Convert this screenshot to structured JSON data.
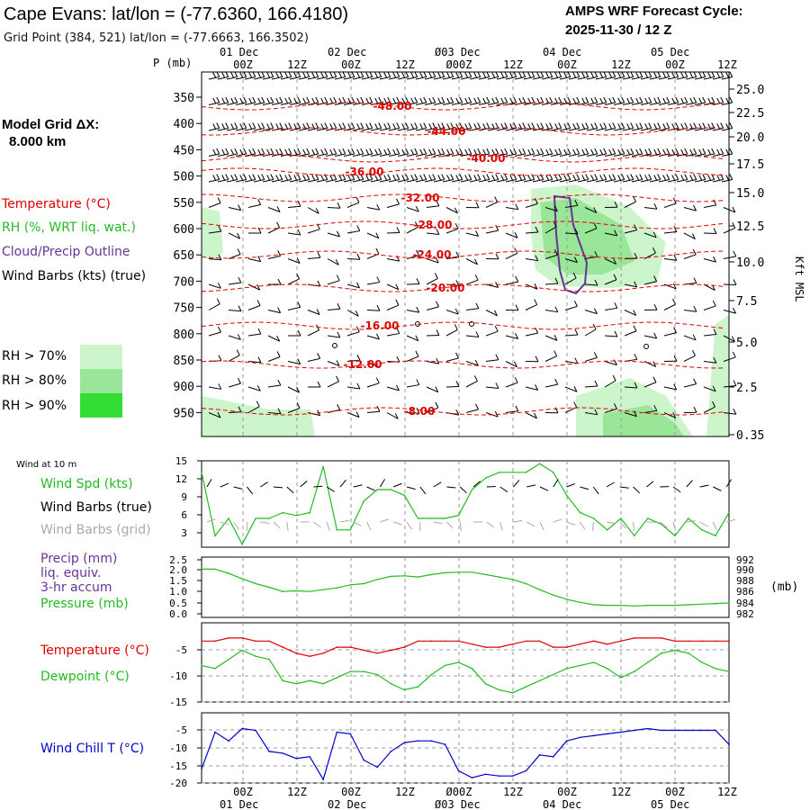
{
  "header": {
    "title": "Cape Evans:  lat/lon = (-77.6360, 166.4180)",
    "subtitle": "Grid Point (384, 521) lat/lon = (-77.6663, 166.3502)",
    "cycle_line1": "AMPS WRF Forecast Cycle:",
    "cycle_line2": "2025-11-30 / 12  Z"
  },
  "left_panel": {
    "grid_label": "Model Grid ΔX:",
    "grid_value": "8.000 km",
    "legend_temperature": "Temperature (°C)",
    "legend_rh": "RH (%, WRT liq. wat.)",
    "legend_cloud": "Cloud/Precip Outline",
    "legend_wind": "Wind Barbs (kts) (true)",
    "rh_levels": [
      "RH > 70%",
      "RH > 80%",
      "RH > 90%"
    ],
    "rh_colors": [
      "#ccf5cc",
      "#99e699",
      "#33dd33"
    ]
  },
  "time_axis": {
    "top_dates": [
      "01 Dec",
      "02 Dec",
      "Ø03 Dec",
      "04 Dec",
      "05 Dec"
    ],
    "bottom_dates": [
      "01 Dec",
      "02 Dec",
      "Ø03 Dec",
      "04 Dec",
      "05 Dec"
    ],
    "hour_labels": [
      "00Z",
      "12Z",
      "00Z",
      "12Z",
      "Ø00Z",
      "12Z",
      "00Z",
      "12Z",
      "00Z",
      "12Z"
    ]
  },
  "colors": {
    "temperature": "#e00000",
    "rh_green": "#22bb22",
    "cloud": "#663399",
    "pressure": "#22bb22",
    "windchill": "#0000cc",
    "grid_barbs": "#aaaaaa"
  },
  "chart_data": [
    {
      "id": "cross_section",
      "type": "contour",
      "ylabel": "P (mb)",
      "y_ticks": [
        "350",
        "400",
        "450",
        "500",
        "550",
        "600",
        "650",
        "700",
        "750",
        "800",
        "850",
        "900",
        "950"
      ],
      "right_ticks": [
        "25.0",
        "22.5",
        "20.0",
        "17.5",
        "15.0",
        "12.5",
        "10.0",
        "7.5",
        "5.0",
        "2.5",
        "0.35"
      ],
      "right_label": "Kft MSL",
      "temperature_contours": [
        {
          "label": "-48.00",
          "value": -48
        },
        {
          "label": "-44.00",
          "value": -44
        },
        {
          "label": "-40.00",
          "value": -40
        },
        {
          "label": "-36.00",
          "value": -36
        },
        {
          "label": "-32.00",
          "value": -32
        },
        {
          "label": "-28.00",
          "value": -28
        },
        {
          "label": "-24.00",
          "value": -24
        },
        {
          "label": "-20.00",
          "value": -20
        },
        {
          "label": "-16.00",
          "value": -16
        },
        {
          "label": "-12.00",
          "value": -12
        },
        {
          "label": "-8.00",
          "value": -8
        }
      ]
    },
    {
      "id": "wind10m",
      "type": "line",
      "title": "Wind at 10 m",
      "label_speed": "Wind Spd (kts)",
      "label_barbs_true": "Wind Barbs (true)",
      "label_barbs_grid": "Wind Barbs (grid)",
      "y_ticks": [
        "15",
        "12",
        "9",
        "6",
        "3"
      ],
      "ylim": [
        0,
        15
      ],
      "hours": [
        0,
        3,
        6,
        9,
        12,
        15,
        18,
        21,
        24,
        27,
        30,
        33,
        36,
        39,
        42,
        45,
        48,
        51,
        54,
        57,
        60,
        63,
        66,
        69,
        72,
        75,
        78,
        81,
        84,
        87,
        90,
        93,
        96,
        99,
        102,
        105,
        108,
        111,
        114,
        117
      ],
      "wind_speed_kts": [
        13,
        2,
        5,
        0.5,
        5,
        5,
        6,
        5.5,
        6,
        14,
        3,
        3,
        8,
        10,
        10,
        9,
        5,
        5,
        5,
        5.5,
        10,
        12,
        13,
        13,
        13,
        14.5,
        13,
        9,
        6,
        5,
        3,
        5,
        2,
        5,
        4,
        2,
        5,
        3,
        2,
        6
      ]
    },
    {
      "id": "precip_pressure",
      "type": "line",
      "label_precip": "Precip (mm)",
      "label_precip2": "liq. equiv.",
      "label_precip3": "3-hr accum",
      "label_pressure": "Pressure (mb)",
      "unit_label": "(mb)",
      "left_ticks": [
        "2.5",
        "2.0",
        "1.5",
        "1.0",
        "0.5",
        "0.0"
      ],
      "right_ticks": [
        "992",
        "990",
        "988",
        "986",
        "984",
        "982"
      ],
      "pressure_ylim": [
        982,
        992
      ],
      "hours": [
        0,
        3,
        6,
        9,
        12,
        15,
        18,
        21,
        24,
        27,
        30,
        33,
        36,
        39,
        42,
        45,
        48,
        51,
        54,
        57,
        60,
        63,
        66,
        69,
        72,
        75,
        78,
        81,
        84,
        87,
        90,
        93,
        96,
        99,
        102,
        105,
        108,
        111,
        114,
        117
      ],
      "pressure_mb": [
        990,
        990,
        989.3,
        988.4,
        987.6,
        987,
        986.3,
        986.4,
        986.3,
        986.6,
        986.9,
        987.4,
        987.6,
        988.3,
        988.8,
        988.9,
        988.7,
        989.1,
        989.4,
        989.5,
        989.5,
        989.1,
        988.7,
        988.3,
        987.6,
        986.6,
        985.7,
        985,
        984.5,
        984.1,
        984,
        984,
        983.9,
        984,
        984,
        984,
        984.1,
        984.2,
        984.3,
        984.4
      ]
    },
    {
      "id": "temp_dewpoint",
      "type": "line",
      "label_temperature": "Temperature (°C)",
      "label_dewpoint": "Dewpoint (°C)",
      "y_ticks": [
        "-5",
        "-10",
        "-15"
      ],
      "ylim": [
        -15,
        -2
      ],
      "hours": [
        0,
        3,
        6,
        9,
        12,
        15,
        18,
        21,
        24,
        27,
        30,
        33,
        36,
        39,
        42,
        45,
        48,
        51,
        54,
        57,
        60,
        63,
        66,
        69,
        72,
        75,
        78,
        81,
        84,
        87,
        90,
        93,
        96,
        99,
        102,
        105,
        108,
        111,
        114,
        117
      ],
      "temperature_c": [
        -5,
        -5,
        -4.5,
        -4.5,
        -5,
        -5,
        -6,
        -7,
        -7.5,
        -7,
        -6,
        -6,
        -6.5,
        -7,
        -6.5,
        -6,
        -5,
        -5,
        -5,
        -5,
        -5.5,
        -6,
        -6,
        -5.5,
        -5,
        -5,
        -6,
        -6,
        -5.5,
        -5,
        -5.5,
        -5,
        -4.5,
        -4.5,
        -4.5,
        -5,
        -5,
        -5,
        -5,
        -5
      ],
      "dewpoint_c": [
        -9,
        -9.5,
        -8,
        -6.5,
        -7.5,
        -8,
        -11.5,
        -12,
        -11.5,
        -12,
        -11,
        -10,
        -10,
        -10.5,
        -12,
        -13,
        -12.5,
        -10.5,
        -9,
        -8.5,
        -9.5,
        -12,
        -13,
        -13.5,
        -12.5,
        -11.5,
        -10.5,
        -9.5,
        -9,
        -8.5,
        -9.5,
        -11,
        -10,
        -8.5,
        -7,
        -6.5,
        -7,
        -8.5,
        -9.5,
        -10
      ]
    },
    {
      "id": "windchill",
      "type": "line",
      "label": "Wind Chill T (°C)",
      "y_ticks": [
        "-5",
        "-10",
        "-15",
        "-20"
      ],
      "ylim": [
        -20,
        0
      ],
      "hours": [
        0,
        3,
        6,
        9,
        12,
        15,
        18,
        21,
        24,
        27,
        30,
        33,
        36,
        39,
        42,
        45,
        48,
        51,
        54,
        57,
        60,
        63,
        66,
        69,
        72,
        75,
        78,
        81,
        84,
        87,
        90,
        93,
        96,
        99,
        102,
        105,
        108,
        111,
        114,
        117
      ],
      "windchill_c": [
        -16,
        -5.5,
        -8,
        -4.5,
        -5,
        -11,
        -11.5,
        -13,
        -12.5,
        -19,
        -5.5,
        -6,
        -13.5,
        -15.5,
        -11,
        -8.5,
        -8,
        -8,
        -9,
        -16.5,
        -18.5,
        -17.5,
        -18,
        -18,
        -16.5,
        -12,
        -12.5,
        -8,
        -7,
        -6.5,
        -6,
        -5.5,
        -5,
        -4.5,
        -5,
        -5,
        -5,
        -5,
        -5,
        -9
      ]
    }
  ]
}
